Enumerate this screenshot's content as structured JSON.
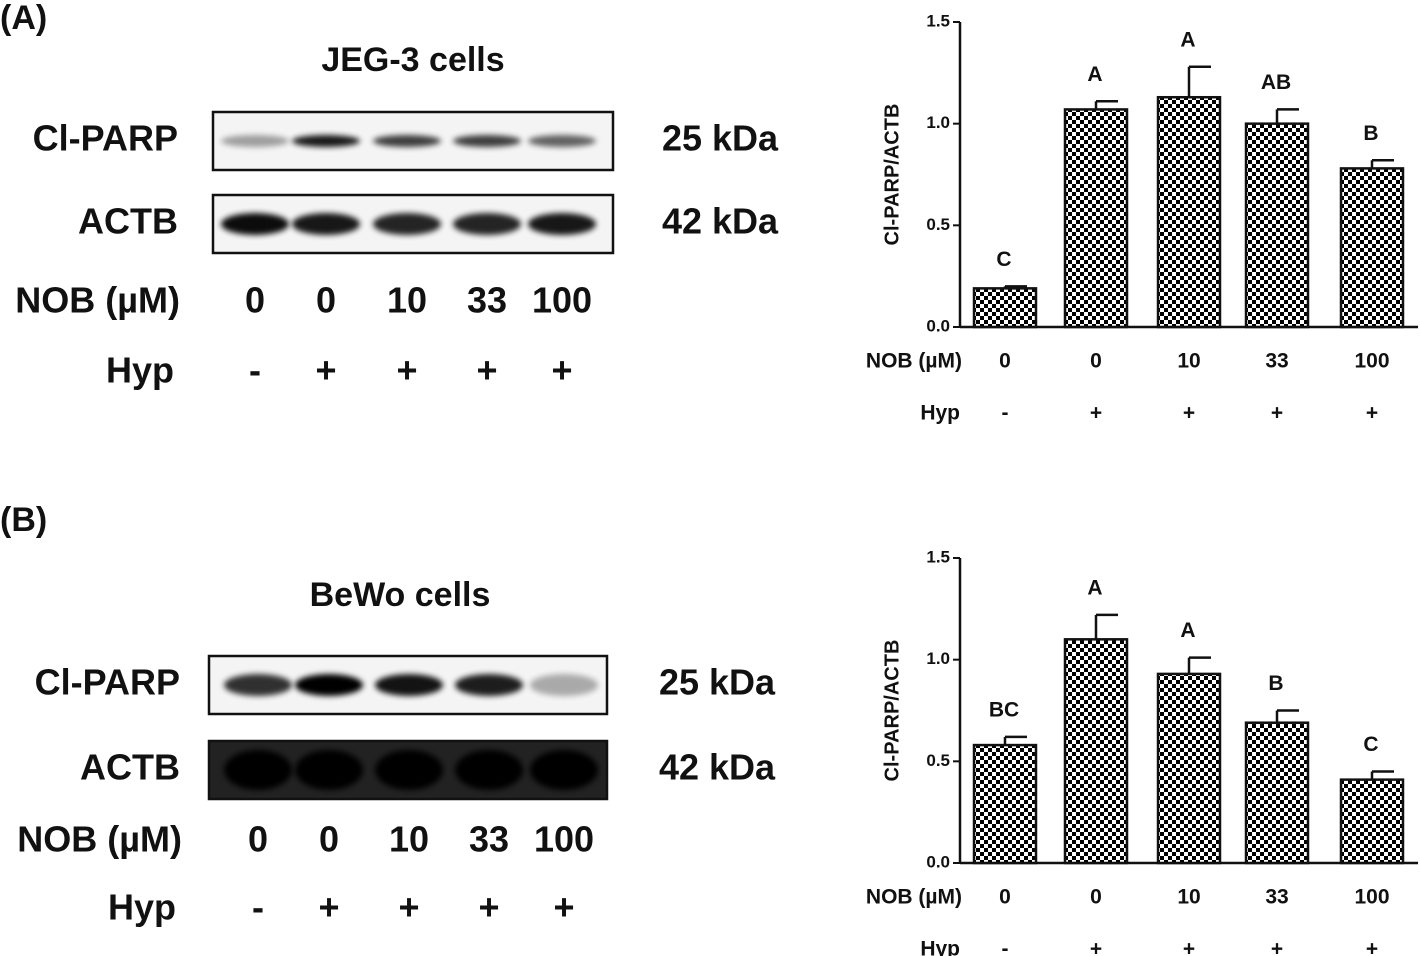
{
  "panels": [
    {
      "label": "(A)",
      "title": "JEG-3 cells",
      "blots": [
        {
          "name": "Cl-PARP",
          "size": "25 kDa"
        },
        {
          "name": "ACTB",
          "size": "42 kDa"
        }
      ],
      "nob_label": "NOB (µM)",
      "nob": [
        "0",
        "0",
        "10",
        "33",
        "100"
      ],
      "hyp_label": "Hyp",
      "hyp": [
        "-",
        "+",
        "+",
        "+",
        "+"
      ]
    },
    {
      "label": "(B)",
      "title": "BeWo cells",
      "blots": [
        {
          "name": "Cl-PARP",
          "size": "25 kDa"
        },
        {
          "name": "ACTB",
          "size": "42 kDa"
        }
      ],
      "nob_label": "NOB (µM)",
      "nob": [
        "0",
        "0",
        "10",
        "33",
        "100"
      ],
      "hyp_label": "Hyp",
      "hyp": [
        "-",
        "+",
        "+",
        "+",
        "+"
      ]
    }
  ],
  "chart_data": [
    {
      "type": "bar",
      "y_label": "Cl-PARP/ACTB",
      "row_labels": [
        "NOB (µM)",
        "Hyp"
      ],
      "categories": [
        "0",
        "0",
        "10",
        "33",
        "100"
      ],
      "hyp": [
        "-",
        "+",
        "+",
        "+",
        "+"
      ],
      "values": [
        0.19,
        1.07,
        1.13,
        1.0,
        0.78
      ],
      "errors": [
        0.01,
        0.04,
        0.15,
        0.07,
        0.04
      ],
      "letters": [
        "C",
        "A",
        "A",
        "AB",
        "B"
      ],
      "ylim": [
        0,
        1.5
      ],
      "yticks": [
        {
          "value": 0,
          "label": "0.0"
        },
        {
          "value": 0.5,
          "label": "0.5"
        },
        {
          "value": 1,
          "label": "1.0"
        },
        {
          "value": 1.5,
          "label": "1.5"
        }
      ],
      "pattern": "checkered"
    },
    {
      "type": "bar",
      "y_label": "Cl-PARP/ACTB",
      "row_labels": [
        "NOB (µM)",
        "Hyp"
      ],
      "categories": [
        "0",
        "0",
        "10",
        "33",
        "100"
      ],
      "hyp": [
        "-",
        "+",
        "+",
        "+",
        "+"
      ],
      "values": [
        0.58,
        1.1,
        0.93,
        0.69,
        0.41
      ],
      "errors": [
        0.04,
        0.12,
        0.08,
        0.06,
        0.04
      ],
      "letters": [
        "BC",
        "A",
        "A",
        "B",
        "C"
      ],
      "ylim": [
        0,
        1.5
      ],
      "yticks": [
        {
          "value": 0,
          "label": "0.0"
        },
        {
          "value": 0.5,
          "label": "0.5"
        },
        {
          "value": 1,
          "label": "1.0"
        },
        {
          "value": 1.5,
          "label": "1.5"
        }
      ],
      "pattern": "checkered"
    }
  ]
}
